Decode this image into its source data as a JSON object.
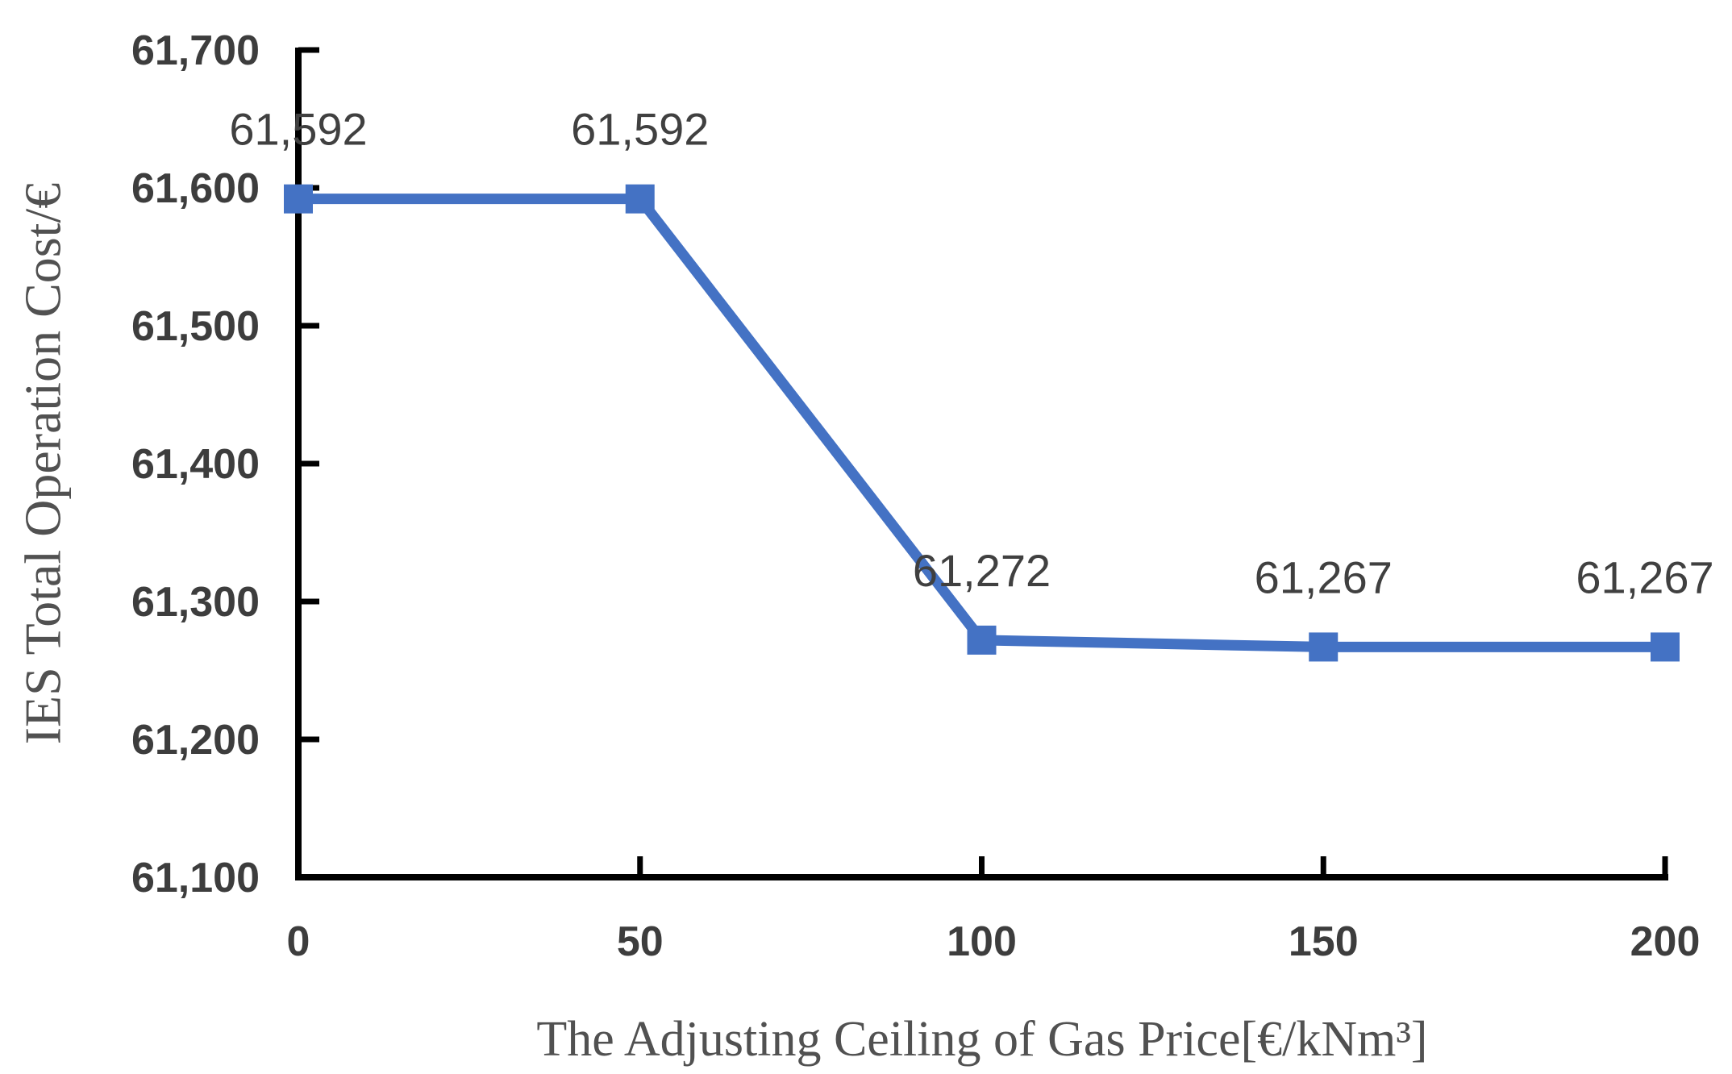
{
  "chart_data": {
    "type": "line",
    "title": "",
    "xlabel": "The Adjusting Ceiling of Gas Price[€/kNm³]",
    "ylabel": "IES Total Operation Cost/€",
    "xlim": [
      0,
      200
    ],
    "ylim": [
      61100,
      61700
    ],
    "grid": false,
    "legend_position": "none",
    "axis_color": "#000000",
    "tick_text_color": "#3d3d3d",
    "axis_title_color": "#515151",
    "series": [
      {
        "name": "IES Total Operation Cost",
        "color": "#4472C4",
        "marker": "square",
        "x": [
          0,
          50,
          100,
          150,
          200
        ],
        "y": [
          61592,
          61592,
          61272,
          61267,
          61267
        ],
        "data_labels": [
          "61,592",
          "61,592",
          "61,272",
          "61,267",
          "61,267"
        ]
      }
    ],
    "xticks": [
      {
        "v": 0,
        "label": "0"
      },
      {
        "v": 50,
        "label": "50"
      },
      {
        "v": 100,
        "label": "100"
      },
      {
        "v": 150,
        "label": "150"
      },
      {
        "v": 200,
        "label": "200"
      }
    ],
    "yticks": [
      {
        "v": 61100,
        "label": "61,100"
      },
      {
        "v": 61200,
        "label": "61,200"
      },
      {
        "v": 61300,
        "label": "61,300"
      },
      {
        "v": 61400,
        "label": "61,400"
      },
      {
        "v": 61500,
        "label": "61,500"
      },
      {
        "v": 61600,
        "label": "61,600"
      },
      {
        "v": 61700,
        "label": "61,700"
      }
    ]
  }
}
